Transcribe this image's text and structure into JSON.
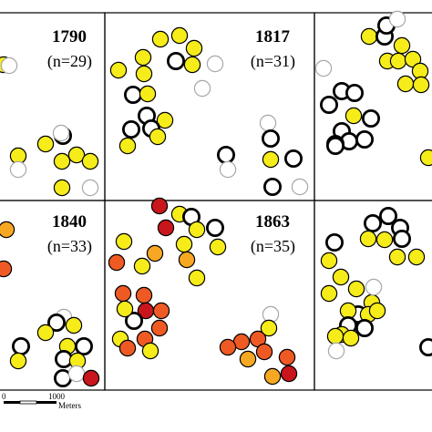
{
  "colors": {
    "yellow": "#f6ec1a",
    "light-yellow": "#fbf4a0",
    "orange": "#f7a823",
    "dark-orange": "#ef5a24",
    "red": "#c8161c",
    "white": "#ffffff",
    "black-outline": "#000000",
    "gray-outline": "#a8a8a8"
  },
  "scalebar": {
    "labels": [
      "0",
      "1000",
      "Meters"
    ]
  },
  "chart_data": {
    "type": "scatter",
    "panels": [
      {
        "id": "p1790",
        "year": "1790",
        "n_label": "(n=29)"
      },
      {
        "id": "p1817",
        "year": "1817",
        "n_label": "(n=31)"
      },
      {
        "id": "p_top_right",
        "year": "",
        "n_label": ""
      },
      {
        "id": "p1840",
        "year": "1840",
        "n_label": "(n=33)"
      },
      {
        "id": "p1863",
        "year": "1863",
        "n_label": "(n=35)"
      },
      {
        "id": "p_bottom_right",
        "year": "",
        "n_label": ""
      }
    ]
  }
}
